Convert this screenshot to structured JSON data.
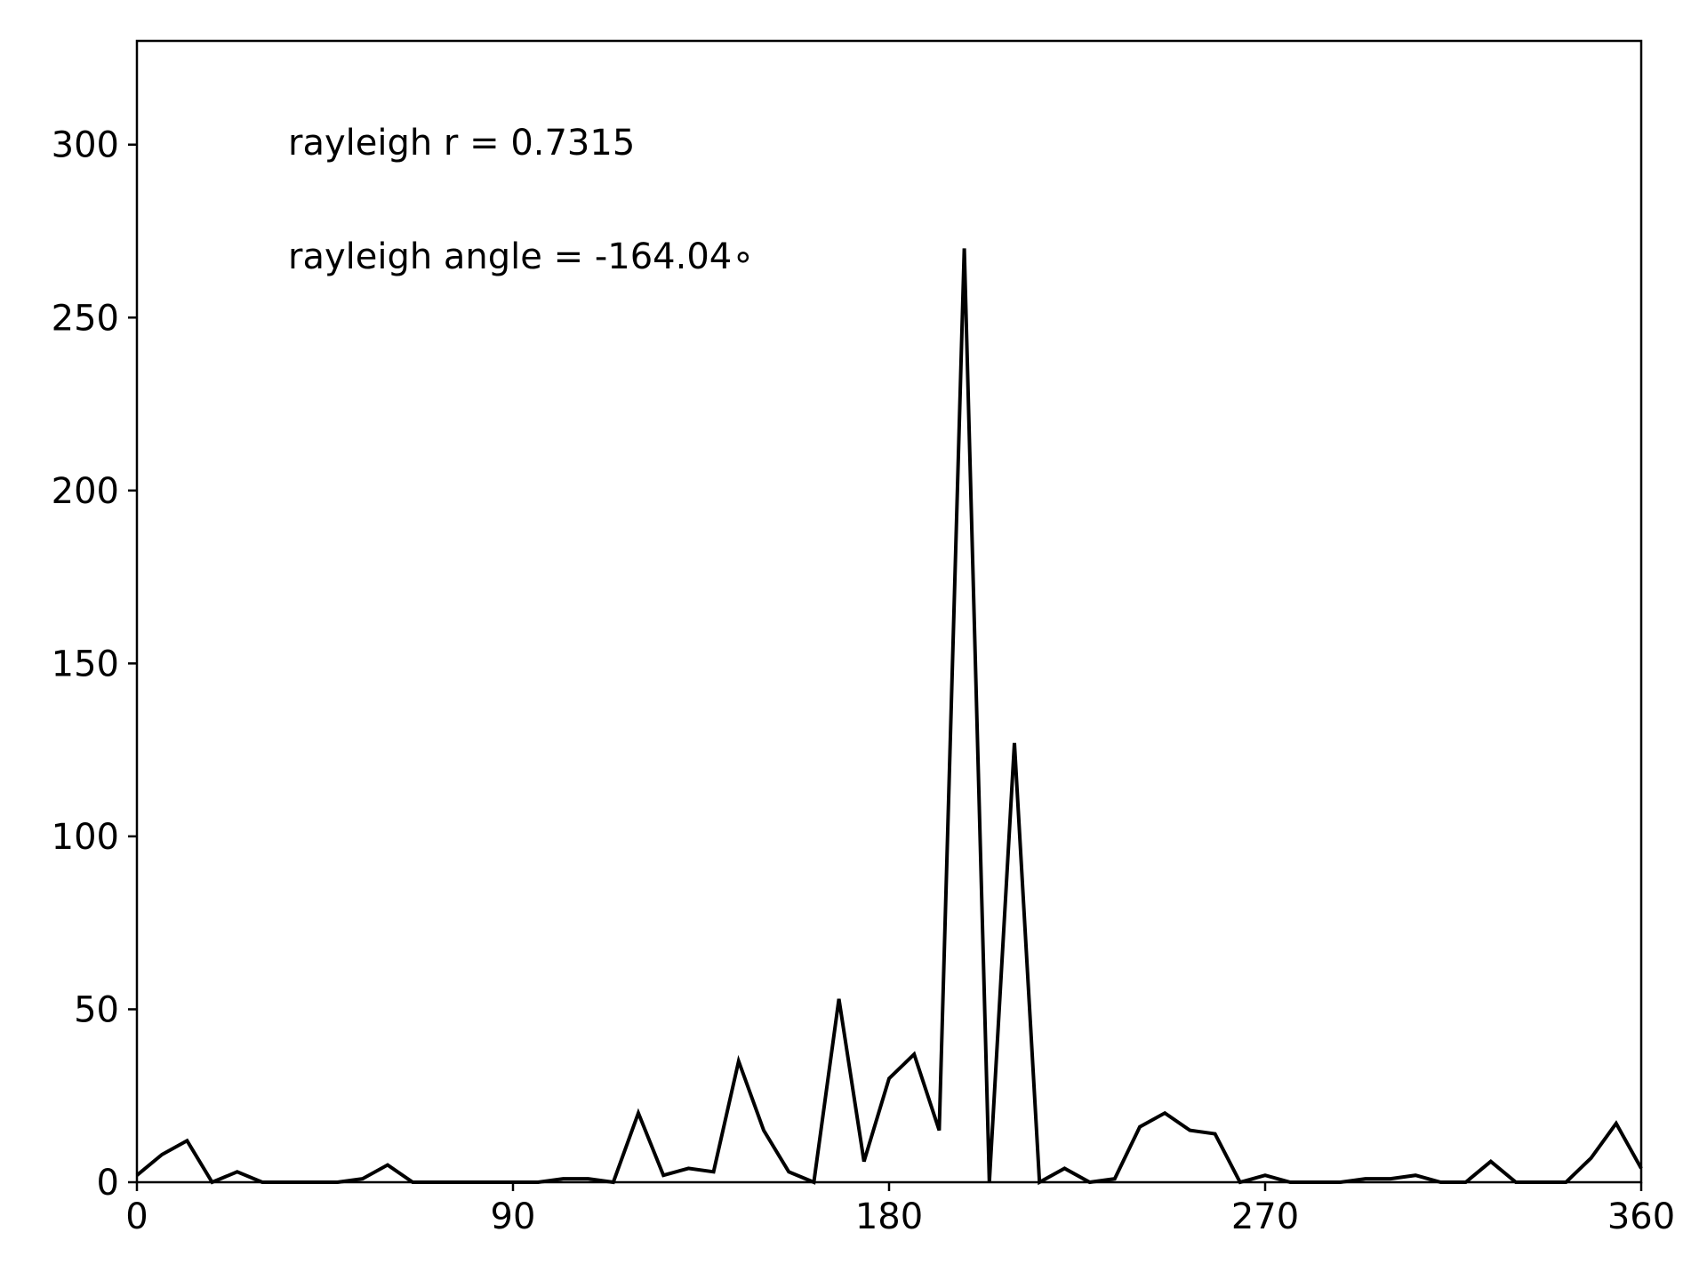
{
  "chart_data": {
    "type": "line",
    "title": "",
    "xlabel": "",
    "ylabel": "",
    "xlim": [
      0,
      360
    ],
    "ylim": [
      0,
      330
    ],
    "x_ticks": [
      0,
      90,
      180,
      270,
      360
    ],
    "y_ticks": [
      0,
      50,
      100,
      150,
      200,
      250,
      300
    ],
    "grid": false,
    "line_color": "#000000",
    "annotations": [
      "rayleigh r = 0.7315",
      "rayleigh angle = -164.04$^\\circ$"
    ],
    "annotation_display": [
      "rayleigh r = 0.7315",
      "rayleigh angle = -164.04∘"
    ],
    "series": [
      {
        "x": [
          0,
          6,
          12,
          18,
          24,
          30,
          36,
          42,
          48,
          54,
          60,
          66,
          72,
          78,
          84,
          90,
          96,
          102,
          108,
          114,
          120,
          126,
          132,
          138,
          144,
          150,
          156,
          162,
          168,
          174,
          180,
          186,
          192,
          198,
          204,
          210,
          216,
          222,
          228,
          234,
          240,
          246,
          252,
          258,
          264,
          270,
          276,
          282,
          288,
          294,
          300,
          306,
          312,
          318,
          324,
          330,
          336,
          342,
          348,
          354,
          360
        ],
        "values": [
          2,
          8,
          12,
          0,
          3,
          0,
          0,
          0,
          0,
          1,
          5,
          0,
          0,
          0,
          0,
          0,
          0,
          1,
          1,
          0,
          20,
          2,
          4,
          3,
          35,
          15,
          3,
          0,
          53,
          6,
          30,
          37,
          15,
          270,
          0,
          127,
          0,
          4,
          0,
          1,
          16,
          20,
          15,
          14,
          0,
          2,
          0,
          0,
          0,
          1,
          1,
          2,
          0,
          0,
          6,
          0,
          0,
          0,
          7,
          17,
          4
        ]
      }
    ]
  }
}
